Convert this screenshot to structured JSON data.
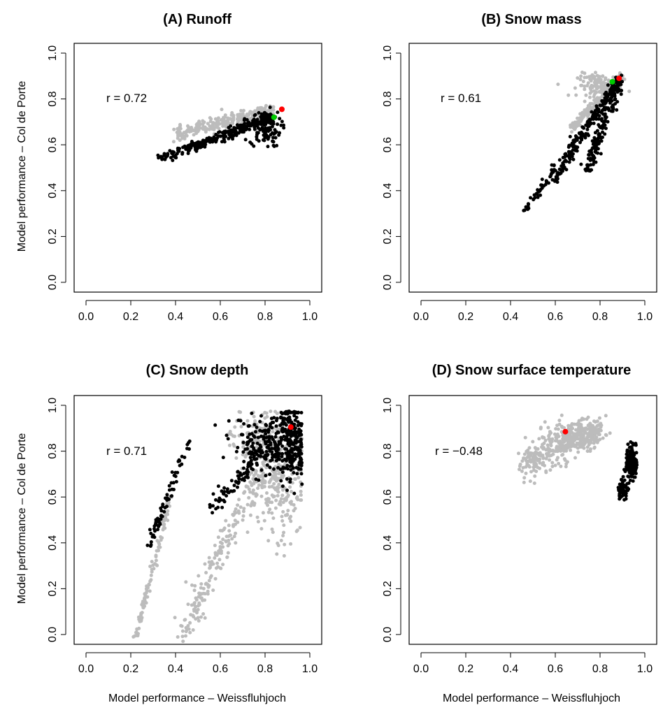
{
  "colors": {
    "gray": "#bcbcbc",
    "black": "#000000",
    "red": "#ff0000",
    "green": "#00cc00"
  },
  "chart_data": [
    {
      "type": "scatter",
      "title": "(A) Runoff",
      "xlabel": "Model performance – Weissfluhjoch",
      "ylabel": "Model performance – Col de Porte",
      "xlim": [
        0,
        1
      ],
      "ylim": [
        0,
        1
      ],
      "xticks": [
        "0.0",
        "0.2",
        "0.4",
        "0.6",
        "0.8",
        "1.0"
      ],
      "yticks": [
        "0.0",
        "0.2",
        "0.4",
        "0.6",
        "0.8",
        "1.0"
      ],
      "annotation": "r = 0.72",
      "clouds": [
        {
          "color": "gray",
          "kind": "band",
          "n": 260,
          "x0": 0.4,
          "x1": 0.84,
          "y0": 0.65,
          "y1": 0.75,
          "spread": 0.015
        },
        {
          "color": "black",
          "kind": "band",
          "n": 180,
          "x0": 0.33,
          "x1": 0.84,
          "y0": 0.54,
          "y1": 0.72,
          "spread": 0.012
        },
        {
          "color": "black",
          "kind": "band",
          "n": 120,
          "x0": 0.45,
          "x1": 0.83,
          "y0": 0.58,
          "y1": 0.73,
          "spread": 0.012
        },
        {
          "color": "black",
          "kind": "blob",
          "n": 90,
          "cx": 0.8,
          "cy": 0.67,
          "sx": 0.035,
          "sy": 0.04
        }
      ],
      "highlights": [
        {
          "x": 0.875,
          "y": 0.755,
          "color": "red"
        },
        {
          "x": 0.84,
          "y": 0.72,
          "color": "green"
        }
      ]
    },
    {
      "type": "scatter",
      "title": "(B) Snow mass",
      "xlabel": "",
      "ylabel": "",
      "xlim": [
        0,
        1
      ],
      "ylim": [
        0,
        1
      ],
      "xticks": [
        "0.0",
        "0.2",
        "0.4",
        "0.6",
        "0.8",
        "1.0"
      ],
      "yticks": [
        "0.0",
        "0.2",
        "0.4",
        "0.6",
        "0.8",
        "1.0"
      ],
      "annotation": "r = 0.61",
      "clouds": [
        {
          "color": "gray",
          "kind": "band",
          "n": 160,
          "x0": 0.67,
          "x1": 0.9,
          "y0": 0.67,
          "y1": 0.9,
          "spread": 0.012
        },
        {
          "color": "gray",
          "kind": "blob",
          "n": 120,
          "cx": 0.8,
          "cy": 0.86,
          "sx": 0.05,
          "sy": 0.025
        },
        {
          "color": "black",
          "kind": "band",
          "n": 140,
          "x0": 0.46,
          "x1": 0.88,
          "y0": 0.31,
          "y1": 0.87,
          "spread": 0.012
        },
        {
          "color": "black",
          "kind": "band",
          "n": 120,
          "x0": 0.6,
          "x1": 0.86,
          "y0": 0.44,
          "y1": 0.86,
          "spread": 0.012
        },
        {
          "color": "black",
          "kind": "band",
          "n": 180,
          "x0": 0.74,
          "x1": 0.89,
          "y0": 0.48,
          "y1": 0.89,
          "spread": 0.02
        }
      ],
      "highlights": [
        {
          "x": 0.885,
          "y": 0.89,
          "color": "red"
        },
        {
          "x": 0.855,
          "y": 0.875,
          "color": "green"
        }
      ]
    },
    {
      "type": "scatter",
      "title": "(C) Snow depth",
      "xlabel": "Model performance – Weissfluhjoch",
      "ylabel": "Model performance – Col de Porte",
      "xlim": [
        0,
        1
      ],
      "ylim": [
        0,
        1
      ],
      "xticks": [
        "0.0",
        "0.2",
        "0.4",
        "0.6",
        "0.8",
        "1.0"
      ],
      "yticks": [
        "0.0",
        "0.2",
        "0.4",
        "0.6",
        "0.8",
        "1.0"
      ],
      "annotation": "r = 0.71",
      "clouds": [
        {
          "color": "gray",
          "kind": "band",
          "n": 110,
          "x0": 0.22,
          "x1": 0.38,
          "y0": -0.02,
          "y1": 0.62,
          "spread": 0.01
        },
        {
          "color": "gray",
          "kind": "band",
          "n": 200,
          "x0": 0.42,
          "x1": 0.78,
          "y0": -0.02,
          "y1": 0.72,
          "spread": 0.035
        },
        {
          "color": "gray",
          "kind": "blob",
          "n": 260,
          "cx": 0.85,
          "cy": 0.67,
          "sx": 0.06,
          "sy": 0.13
        },
        {
          "color": "gray",
          "kind": "blob",
          "n": 120,
          "cx": 0.78,
          "cy": 0.86,
          "sx": 0.07,
          "sy": 0.05
        },
        {
          "color": "black",
          "kind": "band",
          "n": 70,
          "x0": 0.27,
          "x1": 0.46,
          "y0": 0.36,
          "y1": 0.84,
          "spread": 0.015
        },
        {
          "color": "black",
          "kind": "blob",
          "n": 230,
          "cx": 0.82,
          "cy": 0.83,
          "sx": 0.08,
          "sy": 0.07
        },
        {
          "color": "black",
          "kind": "blob",
          "n": 170,
          "cx": 0.92,
          "cy": 0.86,
          "sx": 0.03,
          "sy": 0.09
        },
        {
          "color": "black",
          "kind": "band",
          "n": 70,
          "x0": 0.56,
          "x1": 0.78,
          "y0": 0.55,
          "y1": 0.78,
          "spread": 0.02
        }
      ],
      "highlights": [
        {
          "x": 0.915,
          "y": 0.905,
          "color": "red"
        }
      ]
    },
    {
      "type": "scatter",
      "title": "(D) Snow surface temperature",
      "xlabel": "Model performance – Weissfluhjoch",
      "ylabel": "",
      "xlim": [
        0,
        1
      ],
      "ylim": [
        0,
        1
      ],
      "xticks": [
        "0.0",
        "0.2",
        "0.4",
        "0.6",
        "0.8",
        "1.0"
      ],
      "yticks": [
        "0.0",
        "0.2",
        "0.4",
        "0.6",
        "0.8",
        "1.0"
      ],
      "annotation": "r = −0.48",
      "clouds": [
        {
          "color": "gray",
          "kind": "band",
          "n": 300,
          "x0": 0.45,
          "x1": 0.8,
          "y0": 0.74,
          "y1": 0.9,
          "spread": 0.035
        },
        {
          "color": "gray",
          "kind": "blob",
          "n": 160,
          "cx": 0.68,
          "cy": 0.87,
          "sx": 0.06,
          "sy": 0.025
        },
        {
          "color": "black",
          "kind": "blob",
          "n": 160,
          "cx": 0.94,
          "cy": 0.75,
          "sx": 0.013,
          "sy": 0.035
        },
        {
          "color": "black",
          "kind": "blob",
          "n": 70,
          "cx": 0.9,
          "cy": 0.63,
          "sx": 0.012,
          "sy": 0.02
        }
      ],
      "highlights": [
        {
          "x": 0.645,
          "y": 0.885,
          "color": "red"
        }
      ]
    }
  ]
}
